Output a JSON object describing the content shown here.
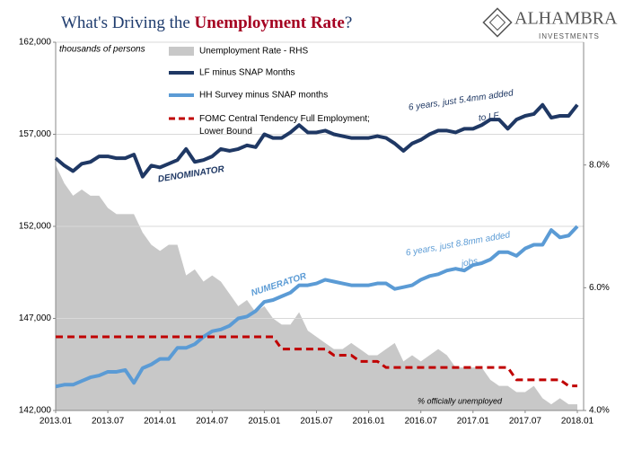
{
  "chart_data": {
    "type": "line",
    "title": [
      "What's Driving the ",
      "Unemployment Rate",
      "?"
    ],
    "logo": [
      "ALHAMBRA",
      "INVESTMENTS"
    ],
    "y_axis_note": "thousands of persons",
    "annotations": [
      {
        "lines": [
          "DENOMINATOR"
        ],
        "color": "#1f3864"
      },
      {
        "lines": [
          "NUMERATOR"
        ],
        "color": "#5b9bd5"
      },
      {
        "lines": [
          "6 years, just 5.4mm added",
          "to LF"
        ],
        "color": "#1f3864"
      },
      {
        "lines": [
          "6 years, just 8.8mm added",
          "jobs"
        ],
        "color": "#5b9bd5"
      },
      {
        "lines": [
          "% officially unemployed"
        ],
        "color": "#000000"
      }
    ],
    "categories": [
      "2013.01",
      null,
      null,
      null,
      null,
      null,
      "2013.07",
      null,
      null,
      null,
      null,
      null,
      "2014.01",
      null,
      null,
      null,
      null,
      null,
      "2014.07",
      null,
      null,
      null,
      null,
      null,
      "2015.01",
      null,
      null,
      null,
      null,
      null,
      "2015.07",
      null,
      null,
      null,
      null,
      null,
      "2016.01",
      null,
      null,
      null,
      null,
      null,
      "2016.07",
      null,
      null,
      null,
      null,
      null,
      "2017.01",
      null,
      null,
      null,
      null,
      null,
      "2017.07",
      null,
      null,
      null,
      null,
      null,
      "2018.01"
    ],
    "ylim": [
      142000,
      162000
    ],
    "yticks": [
      {
        "value": 142000,
        "label": "142,000"
      },
      {
        "value": 147000,
        "label": "147,000"
      },
      {
        "value": 152000,
        "label": "152,000"
      },
      {
        "value": 157000,
        "label": "157,000"
      },
      {
        "value": 162000,
        "label": "162,000"
      }
    ],
    "y2lim": [
      4,
      10
    ],
    "y2ticks": [
      {
        "value": 4,
        "label": "4.0%"
      },
      {
        "value": 6,
        "label": "6.0%"
      },
      {
        "value": 8,
        "label": "8.0%"
      }
    ],
    "grid": true,
    "series": [
      {
        "name": "Unemployment Rate - RHS",
        "type": "area",
        "axis": "y2",
        "color": "#c8c8c8",
        "values": [
          8.0,
          7.7,
          7.5,
          7.6,
          7.5,
          7.5,
          7.3,
          7.2,
          7.2,
          7.2,
          6.9,
          6.7,
          6.6,
          6.7,
          6.7,
          6.2,
          6.3,
          6.1,
          6.2,
          6.1,
          5.9,
          5.7,
          5.8,
          5.6,
          5.7,
          5.5,
          5.4,
          5.4,
          5.6,
          5.3,
          5.2,
          5.1,
          5.0,
          5.0,
          5.1,
          5.0,
          4.9,
          4.9,
          5.0,
          5.1,
          4.8,
          4.9,
          4.8,
          4.9,
          5.0,
          4.9,
          4.7,
          4.7,
          4.7,
          4.7,
          4.5,
          4.4,
          4.4,
          4.3,
          4.3,
          4.4,
          4.2,
          4.1,
          4.2,
          4.1,
          4.1
        ]
      },
      {
        "name": "LF minus SNAP Months",
        "type": "line",
        "color": "#1f3864",
        "values": [
          155700,
          155300,
          155000,
          155400,
          155500,
          155800,
          155800,
          155700,
          155700,
          155900,
          154700,
          155300,
          155200,
          155400,
          155600,
          156200,
          155500,
          155600,
          155800,
          156200,
          156100,
          156200,
          156400,
          156300,
          157000,
          156800,
          156800,
          157100,
          157500,
          157100,
          157100,
          157200,
          157000,
          156900,
          156800,
          156800,
          156800,
          156900,
          156800,
          156500,
          156100,
          156500,
          156700,
          157000,
          157200,
          157200,
          157100,
          157300,
          157300,
          157500,
          157800,
          157800,
          157300,
          157800,
          158000,
          158100,
          158600,
          157900,
          158000,
          158000,
          158600
        ]
      },
      {
        "name": "HH Survey minus SNAP months",
        "type": "line",
        "color": "#5b9bd5",
        "values": [
          143300,
          143400,
          143400,
          143600,
          143800,
          143900,
          144100,
          144100,
          144200,
          143500,
          144300,
          144500,
          144800,
          144800,
          145400,
          145400,
          145600,
          146000,
          146300,
          146400,
          146600,
          147000,
          147100,
          147400,
          147900,
          148000,
          148200,
          148400,
          148800,
          148800,
          148900,
          149100,
          149000,
          148900,
          148800,
          148800,
          148800,
          148900,
          148900,
          148600,
          148700,
          148800,
          149100,
          149300,
          149400,
          149600,
          149700,
          149600,
          149900,
          150000,
          150200,
          150600,
          150600,
          150400,
          150800,
          151000,
          151000,
          151800,
          151400,
          151500,
          152000
        ]
      },
      {
        "name": "FOMC Central Tendency Full Employment; Lower Bound",
        "type": "dashed",
        "axis": "y2",
        "color": "#c00000",
        "values": [
          5.2,
          5.2,
          5.2,
          5.2,
          5.2,
          5.2,
          5.2,
          5.2,
          5.2,
          5.2,
          5.2,
          5.2,
          5.2,
          5.2,
          5.2,
          5.2,
          5.2,
          5.2,
          5.2,
          5.2,
          5.2,
          5.2,
          5.2,
          5.2,
          5.2,
          5.2,
          5.0,
          5.0,
          5.0,
          5.0,
          5.0,
          5.0,
          4.9,
          4.9,
          4.9,
          4.8,
          4.8,
          4.8,
          4.7,
          4.7,
          4.7,
          4.7,
          4.7,
          4.7,
          4.7,
          4.7,
          4.7,
          4.7,
          4.7,
          4.7,
          4.7,
          4.7,
          4.7,
          4.5,
          4.5,
          4.5,
          4.5,
          4.5,
          4.5,
          4.4,
          4.4
        ]
      }
    ]
  }
}
